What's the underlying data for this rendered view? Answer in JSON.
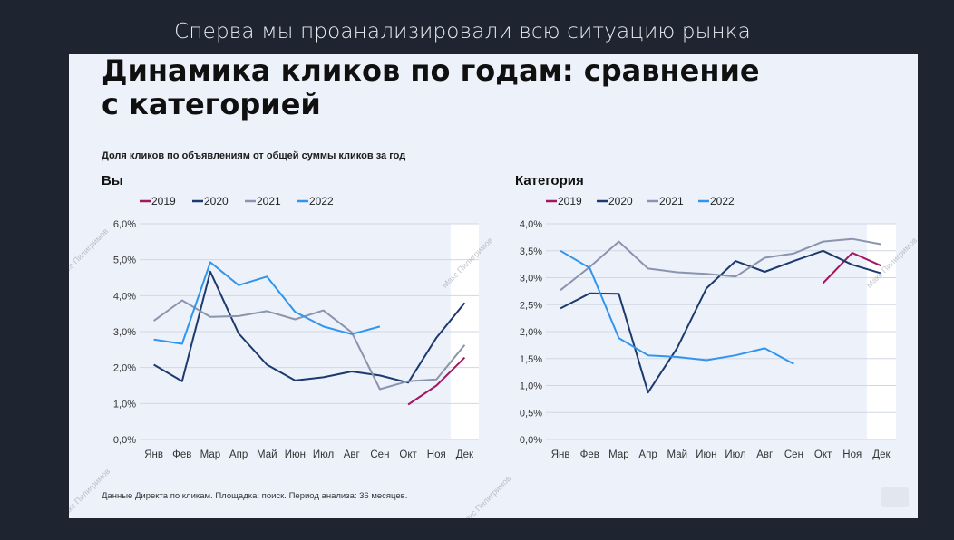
{
  "caption": "Сперва мы проанализировали всю ситуацию рынка",
  "title": "Динамика кликов по годам: сравнение\nс категорией",
  "subtitle": "Доля кликов по объявлениям от общей суммы кликов за год",
  "footnote": "Данные Директа по кликам. Площадка: поиск. Период анализа: 36 месяцев.",
  "watermark": "Макс Пилигримов",
  "colors": {
    "2019": "#a3175f",
    "2020": "#1c3a6e",
    "2021": "#8a94ad",
    "2022": "#2f95ee"
  },
  "chart_data": [
    {
      "type": "line",
      "title": "Вы",
      "categories": [
        "Янв",
        "Фев",
        "Мар",
        "Апр",
        "Май",
        "Июн",
        "Июл",
        "Авг",
        "Сен",
        "Окт",
        "Ноя",
        "Дек"
      ],
      "ylim": [
        0,
        6
      ],
      "yticks": [
        "0,0%",
        "1,0%",
        "2,0%",
        "3,0%",
        "4,0%",
        "5,0%",
        "6,0%"
      ],
      "grid": true,
      "legend": "top-left",
      "highlight_last_category": true,
      "series": [
        {
          "name": "2019",
          "values": [
            null,
            null,
            null,
            null,
            null,
            null,
            null,
            null,
            null,
            0.97,
            1.5,
            2.28
          ]
        },
        {
          "name": "2020",
          "values": [
            2.08,
            1.62,
            4.67,
            2.95,
            2.08,
            1.64,
            1.73,
            1.89,
            1.78,
            1.58,
            2.83,
            3.8
          ]
        },
        {
          "name": "2021",
          "values": [
            3.3,
            3.87,
            3.41,
            3.43,
            3.57,
            3.34,
            3.59,
            2.98,
            1.4,
            1.62,
            1.67,
            2.63
          ]
        },
        {
          "name": "2022",
          "values": [
            2.78,
            2.66,
            4.93,
            4.29,
            4.53,
            3.55,
            3.14,
            2.93,
            3.14,
            null,
            null,
            null
          ]
        }
      ]
    },
    {
      "type": "line",
      "title": "Категория",
      "categories": [
        "Янв",
        "Фев",
        "Мар",
        "Апр",
        "Май",
        "Июн",
        "Июл",
        "Авг",
        "Сен",
        "Окт",
        "Ноя",
        "Дек"
      ],
      "ylim": [
        0,
        4
      ],
      "yticks": [
        "0,0%",
        "0,5%",
        "1,0%",
        "1,5%",
        "2,0%",
        "2,5%",
        "3,0%",
        "3,5%",
        "4,0%"
      ],
      "grid": true,
      "legend": "top-left",
      "highlight_last_category": true,
      "series": [
        {
          "name": "2019",
          "values": [
            null,
            null,
            null,
            null,
            null,
            null,
            null,
            null,
            null,
            2.9,
            3.46,
            3.22
          ]
        },
        {
          "name": "2020",
          "values": [
            2.43,
            2.71,
            2.7,
            0.87,
            1.7,
            2.8,
            3.31,
            3.11,
            3.31,
            3.5,
            3.24,
            3.08
          ]
        },
        {
          "name": "2021",
          "values": [
            2.77,
            3.2,
            3.67,
            3.17,
            3.1,
            3.07,
            3.02,
            3.37,
            3.45,
            3.67,
            3.72,
            3.62
          ]
        },
        {
          "name": "2022",
          "values": [
            3.5,
            3.18,
            1.88,
            1.56,
            1.53,
            1.47,
            1.56,
            1.69,
            1.4,
            null,
            null,
            null
          ]
        }
      ]
    }
  ]
}
